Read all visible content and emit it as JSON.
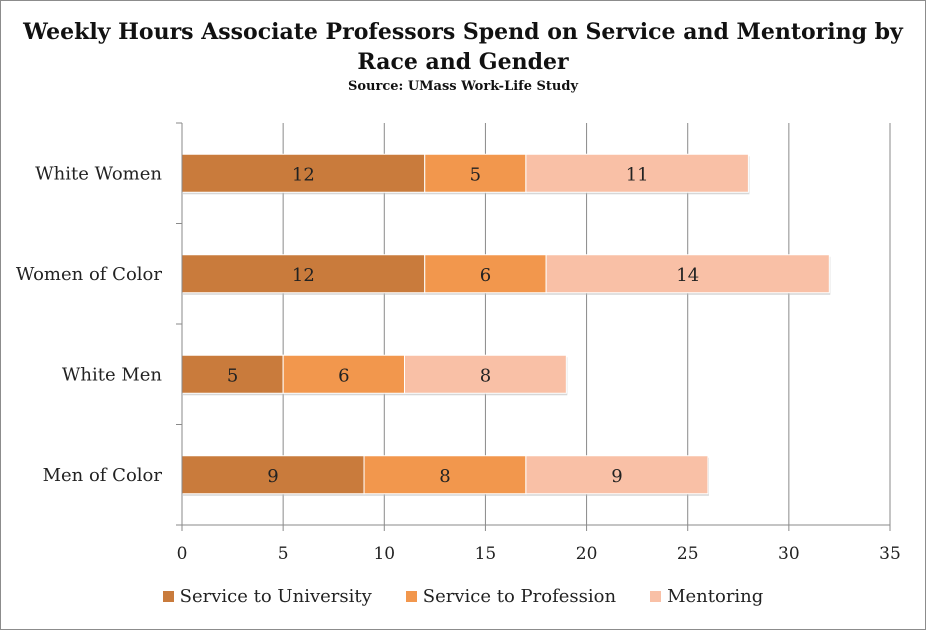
{
  "chart_data": {
    "type": "bar",
    "orientation": "horizontal",
    "stacked": true,
    "title": "Weekly Hours Associate Professors Spend on Service and Mentoring by Race and Gender",
    "subtitle": "Source: UMass Work-Life Study",
    "categories": [
      "White Women",
      "Women of Color",
      "White Men",
      "Men of Color"
    ],
    "series": [
      {
        "name": "Service to University",
        "values": [
          12,
          12,
          5,
          9
        ],
        "color": "#c97b3c"
      },
      {
        "name": "Service to Profession",
        "values": [
          5,
          6,
          6,
          8
        ],
        "color": "#f2974d"
      },
      {
        "name": "Mentoring",
        "values": [
          11,
          14,
          8,
          9
        ],
        "color": "#f9c0a6"
      }
    ],
    "xlim": [
      0,
      35
    ],
    "xticks": [
      "0",
      "5",
      "10",
      "15",
      "20",
      "25",
      "30",
      "35"
    ],
    "grid": true,
    "legend_position": "bottom"
  }
}
